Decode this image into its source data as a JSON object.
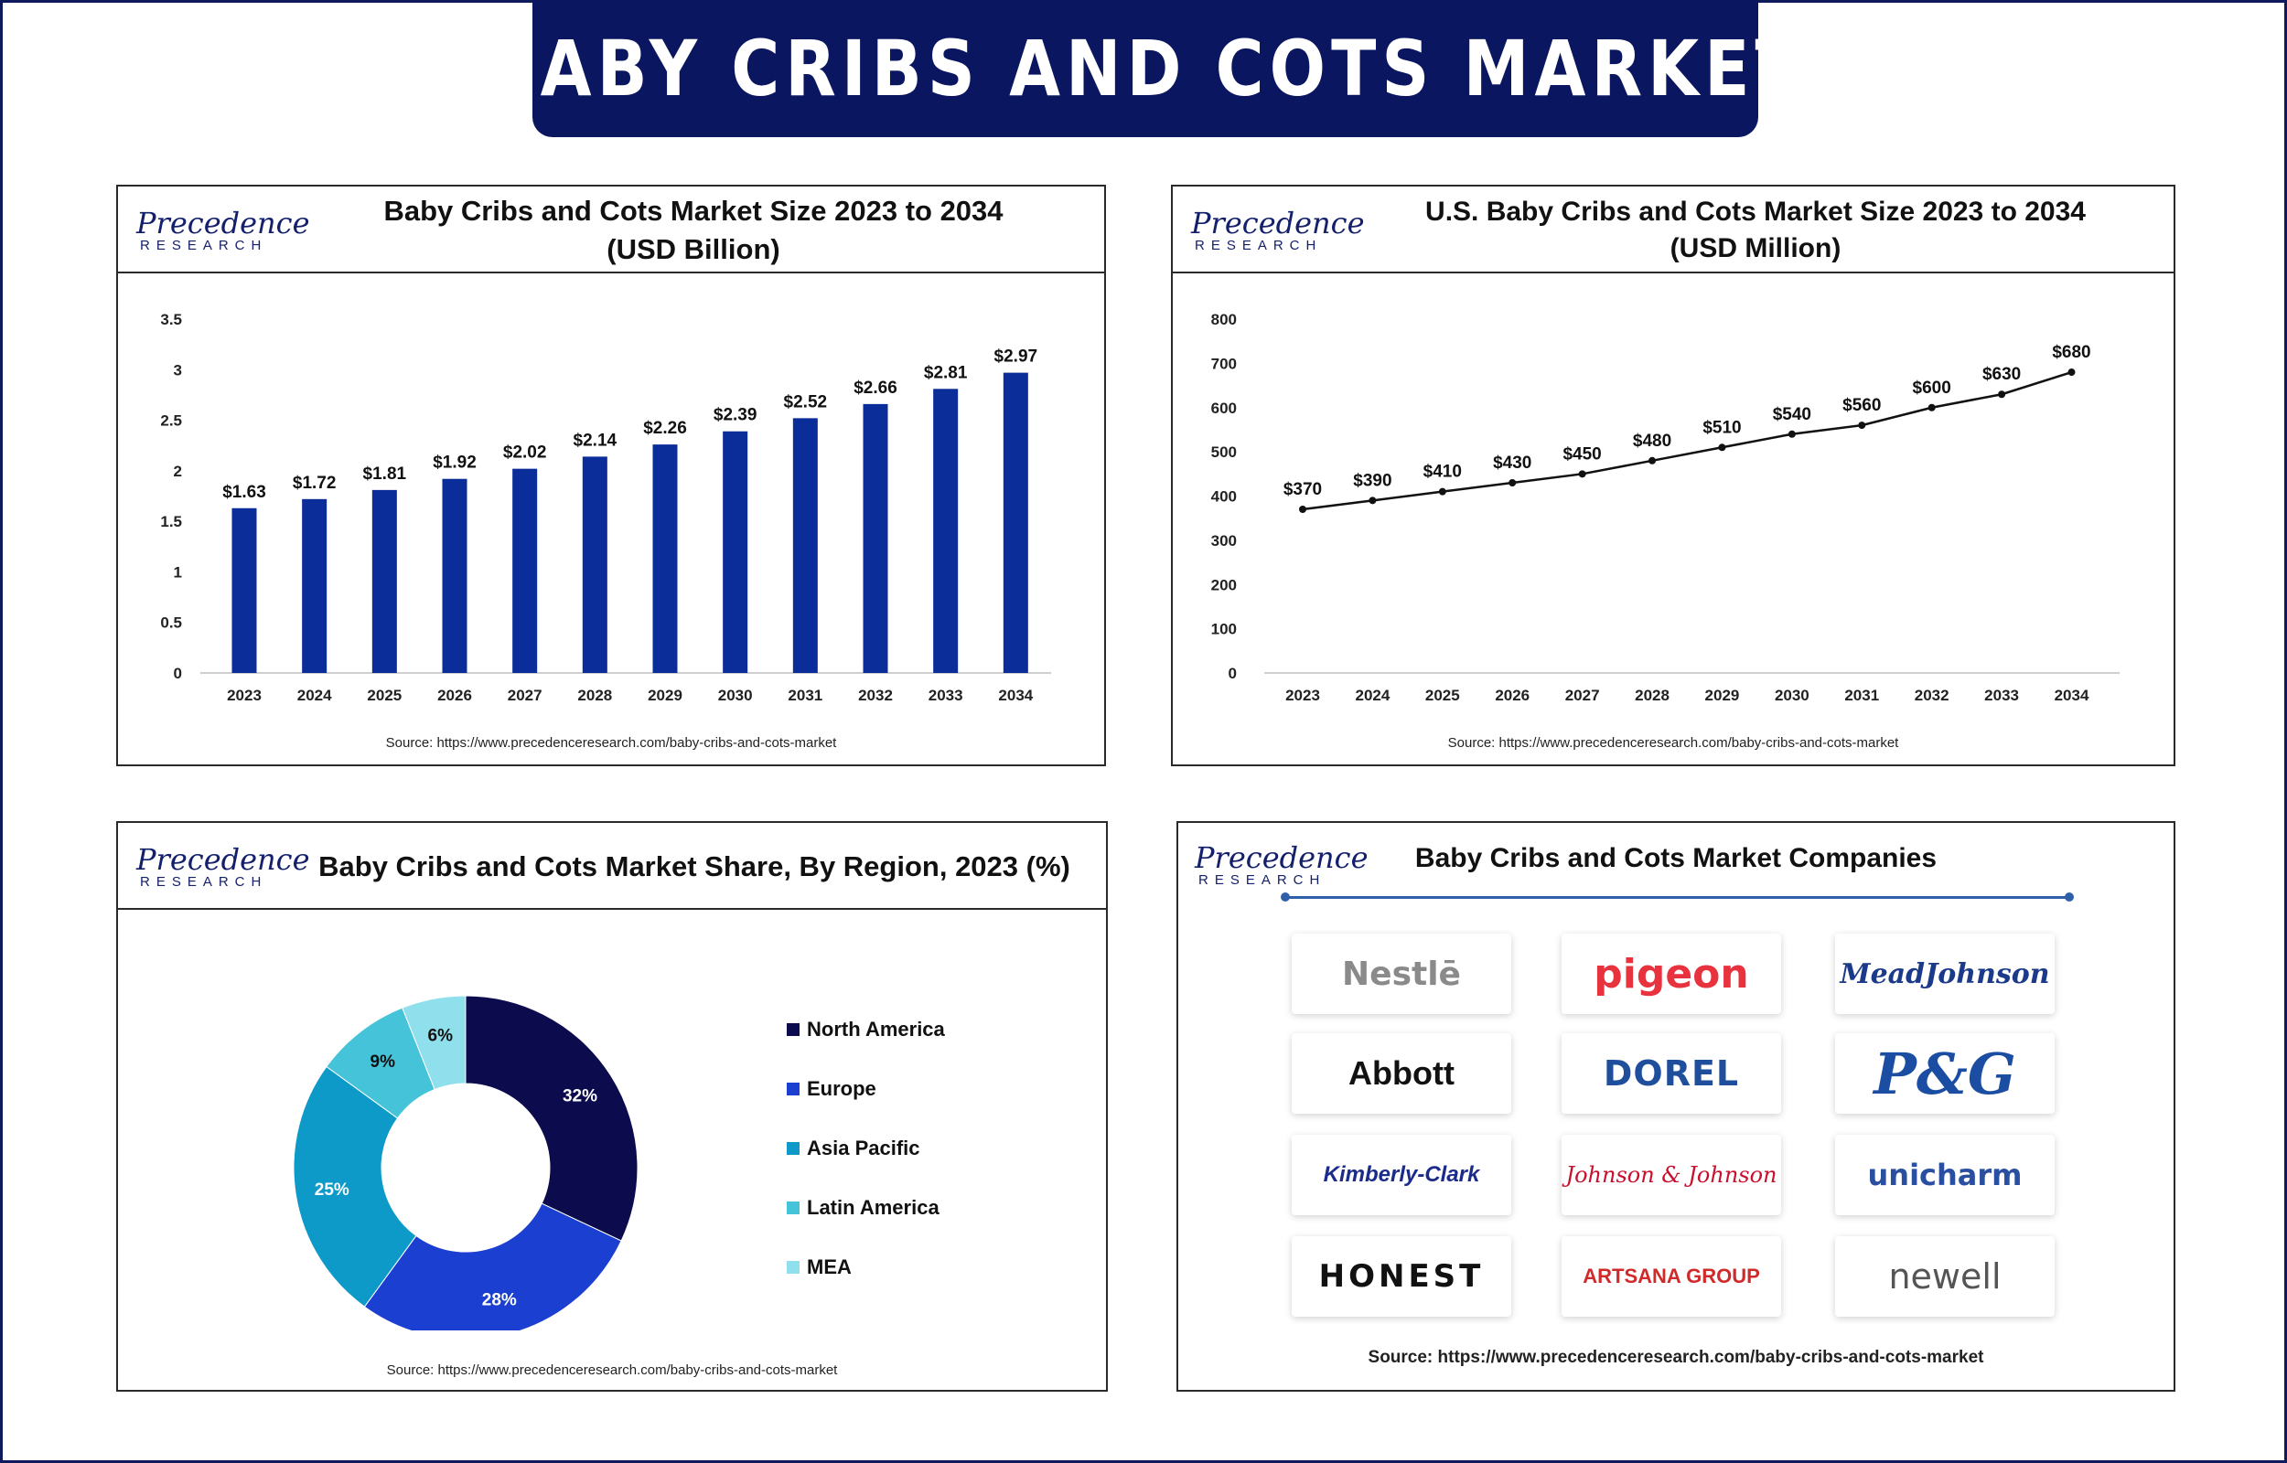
{
  "page_title": "BABY CRIBS AND COTS MARKET",
  "logo": {
    "line1": "Precedence",
    "line2": "RESEARCH"
  },
  "chart_data": [
    {
      "type": "bar",
      "title": "Baby Cribs and Cots Market Size 2023 to 2034",
      "subtitle": "(USD Billion)",
      "categories": [
        "2023",
        "2024",
        "2025",
        "2026",
        "2027",
        "2028",
        "2029",
        "2030",
        "2031",
        "2032",
        "2033",
        "2034"
      ],
      "values": [
        1.63,
        1.72,
        1.81,
        1.92,
        2.02,
        2.14,
        2.26,
        2.39,
        2.52,
        2.66,
        2.81,
        2.97
      ],
      "data_labels": [
        "$1.63",
        "$1.72",
        "$1.81",
        "$1.92",
        "$2.02",
        "$2.14",
        "$2.26",
        "$2.39",
        "$2.52",
        "$2.66",
        "$2.81",
        "$2.97"
      ],
      "yticks": [
        "0",
        "0.5",
        "1",
        "1.5",
        "2",
        "2.5",
        "3",
        "3.5"
      ],
      "ylim": [
        0,
        3.5
      ],
      "color": "#0a2d9a",
      "source": "Source: https://www.precedenceresearch.com/baby-cribs-and-cots-market"
    },
    {
      "type": "line",
      "title": "U.S. Baby Cribs and Cots Market Size 2023 to 2034",
      "subtitle": "(USD Million)",
      "categories": [
        "2023",
        "2024",
        "2025",
        "2026",
        "2027",
        "2028",
        "2029",
        "2030",
        "2031",
        "2032",
        "2033",
        "2034"
      ],
      "values": [
        370,
        390,
        410,
        430,
        450,
        480,
        510,
        540,
        560,
        600,
        630,
        680
      ],
      "data_labels": [
        "$370",
        "$390",
        "$410",
        "$430",
        "$450",
        "$480",
        "$510",
        "$540",
        "$560",
        "$600",
        "$630",
        "$680"
      ],
      "yticks": [
        "0",
        "100",
        "200",
        "300",
        "400",
        "500",
        "600",
        "700",
        "800"
      ],
      "ylim": [
        0,
        800
      ],
      "color": "#111111",
      "source": "Source: https://www.precedenceresearch.com/baby-cribs-and-cots-market"
    },
    {
      "type": "pie",
      "title": "Baby Cribs and Cots Market Share, By Region, 2023 (%)",
      "donut": true,
      "slices": [
        {
          "name": "North America",
          "value": 32,
          "label": "32%",
          "color": "#0b0b4d"
        },
        {
          "name": "Europe",
          "value": 28,
          "label": "28%",
          "color": "#1b3fd1"
        },
        {
          "name": "Asia Pacific",
          "value": 25,
          "label": "25%",
          "color": "#0e9ac9"
        },
        {
          "name": "Latin America",
          "value": 9,
          "label": "9%",
          "color": "#45c3d8"
        },
        {
          "name": "MEA",
          "value": 6,
          "label": "6%",
          "color": "#8fe0ec"
        }
      ],
      "legend_position": "right",
      "source": "Source: https://www.precedenceresearch.com/baby-cribs-and-cots-market"
    }
  ],
  "companies": {
    "title": "Baby Cribs and Cots Market Companies",
    "items": [
      {
        "name": "Nestlē",
        "color": "#8a8a8a"
      },
      {
        "name": "pigeon",
        "color": "#e8333f"
      },
      {
        "name": "MeadJohnson",
        "color": "#1b3a8a"
      },
      {
        "name": "Abbott",
        "color": "#111111"
      },
      {
        "name": "DOREL",
        "color": "#1f4f9c"
      },
      {
        "name": "P&G",
        "color": "#1b4ea3"
      },
      {
        "name": "Kimberly-Clark",
        "color": "#1a2b8a"
      },
      {
        "name": "Johnson & Johnson",
        "color": "#c8102e"
      },
      {
        "name": "unicharm",
        "color": "#2a4fa0"
      },
      {
        "name": "HONEST",
        "color": "#111111"
      },
      {
        "name": "ARTSANA GROUP",
        "color": "#d02a2a"
      },
      {
        "name": "newell",
        "color": "#555555"
      }
    ],
    "source": "Source: https://www.precedenceresearch.com/baby-cribs-and-cots-market"
  }
}
